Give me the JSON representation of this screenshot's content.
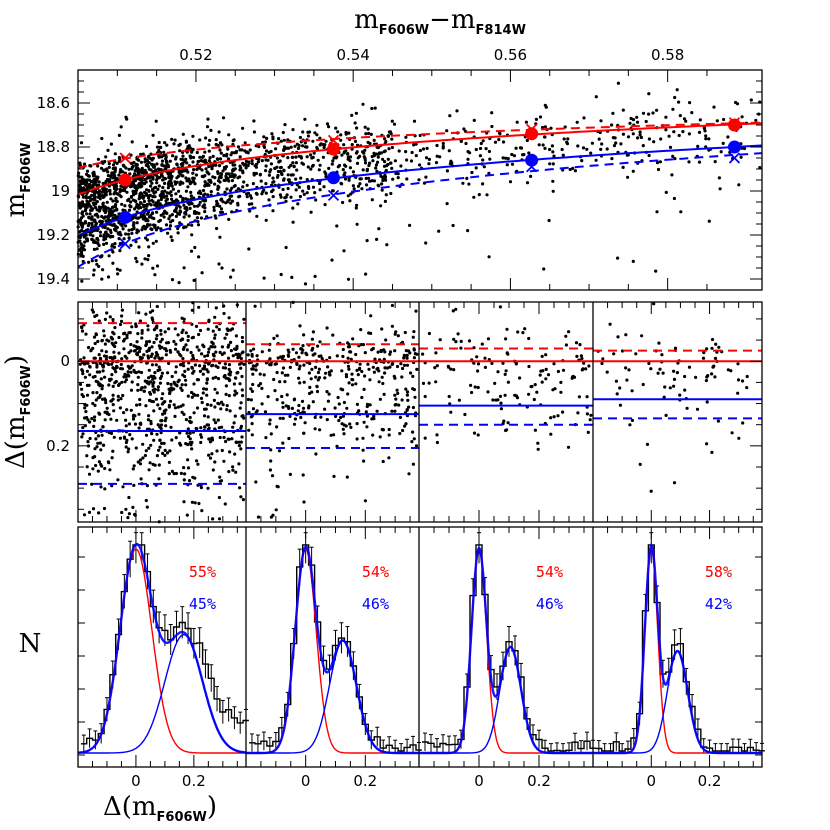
{
  "chart_data": {
    "type": "scatter",
    "colors": {
      "first": "#ff0000",
      "second": "#0000ff",
      "points": "#000000",
      "hist": "#000000"
    },
    "top_panel": {
      "xlabel_main": "m",
      "xlabel_sub1": "F606W",
      "xlabel_minus": "−",
      "xlabel_main2": "m",
      "xlabel_sub2": "F814W",
      "ylabel_main": "m",
      "ylabel_sub": "F606W",
      "xlim": [
        0.505,
        0.592
      ],
      "ylim": [
        19.45,
        18.45
      ],
      "xticks": [
        0.52,
        0.54,
        0.56,
        0.58
      ],
      "xtick_labels": [
        "0.52",
        "0.54",
        "0.56",
        "0.58"
      ],
      "yticks": [
        18.6,
        18.8,
        19.0,
        19.2,
        19.4
      ],
      "ytick_labels": [
        "18.6",
        "18.8",
        "19",
        "19.2",
        "19.4"
      ],
      "fiducial_red": {
        "x": [
          0.511,
          0.5375,
          0.5627,
          0.5885
        ],
        "y": [
          18.95,
          18.81,
          18.74,
          18.7
        ]
      },
      "fiducial_blue": {
        "x": [
          0.511,
          0.5375,
          0.5627,
          0.5885
        ],
        "y": [
          19.12,
          18.94,
          18.86,
          18.8
        ]
      },
      "cross_red": {
        "x": [
          0.511,
          0.5375,
          0.5627,
          0.5885
        ],
        "y": [
          18.85,
          18.77,
          18.72,
          18.69
        ]
      },
      "cross_blue": {
        "x": [
          0.511,
          0.5375,
          0.5627,
          0.5885
        ],
        "y": [
          19.24,
          19.02,
          18.89,
          18.85
        ]
      }
    },
    "middle_panel": {
      "ylabel_main": "Δ(m",
      "ylabel_sub": "F606W",
      "ylabel_close": ")",
      "ylim": [
        -0.14,
        0.38
      ],
      "yticks": [
        0,
        0.2
      ],
      "ytick_labels": [
        "0",
        "0.2"
      ],
      "bins": [
        {
          "red_dashed": -0.09,
          "blue_solid": 0.165,
          "blue_dashed": 0.29
        },
        {
          "red_dashed": -0.04,
          "blue_solid": 0.125,
          "blue_dashed": 0.205
        },
        {
          "red_dashed": -0.03,
          "blue_solid": 0.105,
          "blue_dashed": 0.15
        },
        {
          "red_dashed": -0.025,
          "blue_solid": 0.09,
          "blue_dashed": 0.135
        }
      ]
    },
    "bottom_panel": {
      "ylabel": "N",
      "xlabel_main": "Δ(m",
      "xlabel_sub": "F606W",
      "xlabel_close": ")",
      "xlim": [
        -0.2,
        0.38
      ],
      "xticks": [
        0,
        0.2
      ],
      "xtick_labels": [
        "0",
        "0.2"
      ],
      "bins": [
        {
          "red_pct": "55%",
          "blue_pct": "45%",
          "red_center": 0.0,
          "red_sigma": 0.055,
          "red_amp": 1.0,
          "blue_center": 0.165,
          "blue_sigma": 0.065,
          "blue_amp": 0.58
        },
        {
          "red_pct": "54%",
          "blue_pct": "46%",
          "red_center": 0.0,
          "red_sigma": 0.035,
          "red_amp": 1.0,
          "blue_center": 0.125,
          "blue_sigma": 0.045,
          "blue_amp": 0.55
        },
        {
          "red_pct": "54%",
          "blue_pct": "46%",
          "red_center": 0.0,
          "red_sigma": 0.025,
          "red_amp": 1.0,
          "blue_center": 0.105,
          "blue_sigma": 0.035,
          "blue_amp": 0.52
        },
        {
          "red_pct": "58%",
          "blue_pct": "42%",
          "red_center": 0.0,
          "red_sigma": 0.022,
          "red_amp": 1.0,
          "blue_center": 0.09,
          "blue_sigma": 0.035,
          "blue_amp": 0.5
        }
      ]
    }
  }
}
